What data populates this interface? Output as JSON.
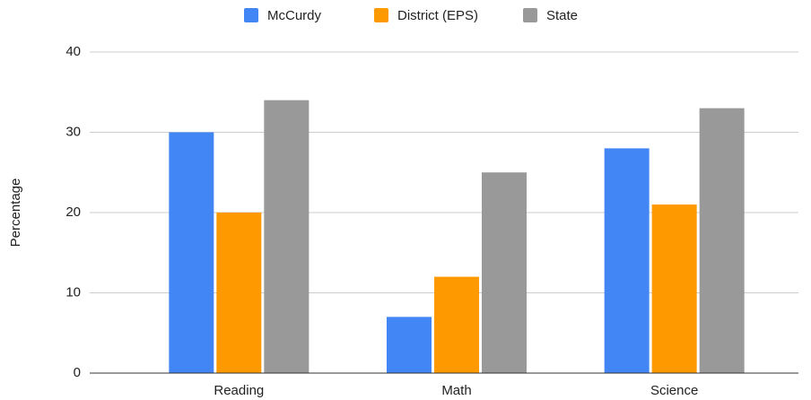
{
  "chart_data": {
    "type": "bar",
    "y_label": "Percentage",
    "categories": [
      "Reading",
      "Math",
      "Science"
    ],
    "series": [
      {
        "name": "McCurdy",
        "color": "#4285f4",
        "values": [
          30,
          7,
          28
        ]
      },
      {
        "name": "District (EPS)",
        "color": "#ff9900",
        "values": [
          20,
          12,
          21
        ]
      },
      {
        "name": "State",
        "color": "#999999",
        "values": [
          34,
          25,
          33
        ]
      }
    ],
    "ylim": [
      0,
      40
    ],
    "yticks": [
      0,
      10,
      20,
      30,
      40
    ],
    "grid": true,
    "legend": "top"
  }
}
